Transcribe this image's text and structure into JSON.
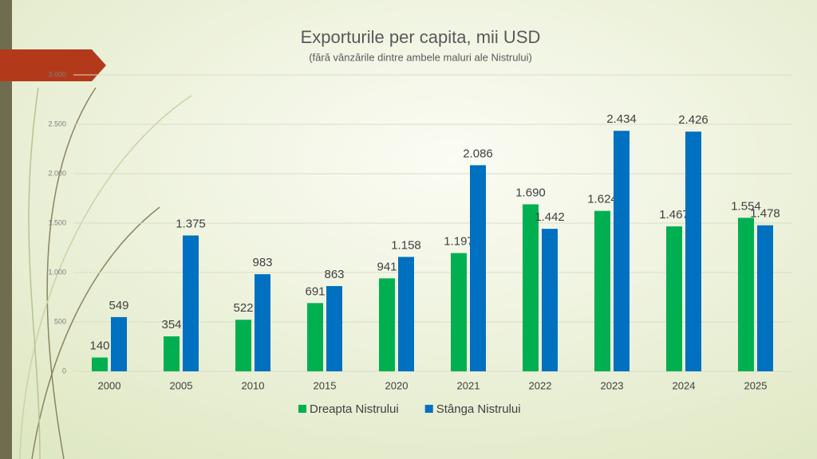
{
  "chart_data": {
    "type": "bar",
    "title": "Exporturile per capita, mii USD",
    "subtitle": "(fără vânzările dintre ambele maluri ale Nistrului)",
    "categories": [
      "2000",
      "2005",
      "2010",
      "2015",
      "2020",
      "2021",
      "2022",
      "2023",
      "2024",
      "2025"
    ],
    "series": [
      {
        "name": "Dreapta Nistrului",
        "color": "#00b050",
        "values": [
          140,
          354,
          522,
          691,
          941,
          1197,
          1690,
          1624,
          1467,
          1554
        ],
        "value_labels": [
          "140",
          "354",
          "522",
          "691",
          "941",
          "1.197",
          "1.690",
          "1.624",
          "1.467",
          "1.554"
        ]
      },
      {
        "name": "Stânga Nistrului",
        "color": "#0070c0",
        "values": [
          549,
          1375,
          983,
          863,
          1158,
          2086,
          1442,
          2434,
          2426,
          1478
        ],
        "value_labels": [
          "549",
          "1.375",
          "983",
          "863",
          "1.158",
          "2.086",
          "1.442",
          "2.434",
          "2.426",
          "1.478"
        ]
      }
    ],
    "ylim": [
      0,
      3000
    ],
    "yticks": [
      0,
      500,
      {
        "value": 1000,
        "label": "1.000"
      },
      {
        "value": 1500,
        "label": "1.500"
      },
      {
        "value": 2000,
        "label": "2.000"
      },
      {
        "value": 2500,
        "label": "2.500"
      },
      {
        "value": 3000,
        "label": "3.000"
      }
    ],
    "grid": true,
    "legend": "bottom"
  }
}
